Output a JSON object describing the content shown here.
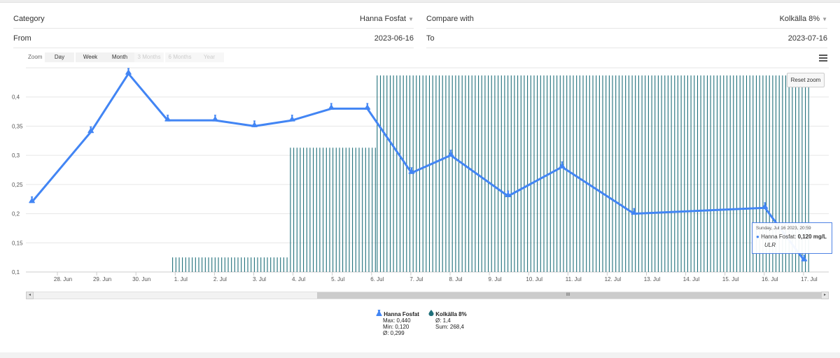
{
  "form": {
    "category_label": "Category",
    "category_value": "Hanna Fosfat",
    "compare_label": "Compare with",
    "compare_value": "Kolkälla 8%",
    "from_label": "From",
    "from_value": "2023-06-16",
    "to_label": "To",
    "to_value": "2023-07-16",
    "dropdown_caret": "▼"
  },
  "zoom": {
    "label": "Zoom",
    "buttons": [
      {
        "label": "Day",
        "enabled": true
      },
      {
        "label": "Week",
        "enabled": true
      },
      {
        "label": "Month",
        "enabled": true
      },
      {
        "label": "3 Months",
        "enabled": false
      },
      {
        "label": "6 Months",
        "enabled": false
      },
      {
        "label": "Year",
        "enabled": false
      }
    ]
  },
  "reset_zoom_label": "Reset zoom",
  "tooltip": {
    "date": "Sunday, Jul 16 2023, 20:59",
    "bullet": "●",
    "series": "Hanna Fosfat:",
    "value": "0,120 mg/L",
    "note": "ULR"
  },
  "legend": {
    "hanna": {
      "name": "Hanna Fosfat",
      "max": "Max: 0,440",
      "min": "Min: 0,120",
      "avg": "Ø: 0,299"
    },
    "kolk": {
      "name": "Kolkälla 8%",
      "avg": "Ø: 1,4",
      "sum": "Sum: 268,4"
    }
  },
  "scrollbar": {
    "left": "◂",
    "right": "▸",
    "grip": "III"
  },
  "colors": {
    "line": "#4285f4",
    "bars": "#1f6f7a",
    "grid": "#e6e6e6",
    "axis_text": "#555555"
  },
  "chart_data": {
    "type": "line",
    "title": "",
    "ylim": [
      0.1,
      0.45
    ],
    "yticks": [
      0.1,
      0.15,
      0.2,
      0.25,
      0.3,
      0.35,
      0.4
    ],
    "ytick_labels": [
      "0,1",
      "0,15",
      "0,2",
      "0,25",
      "0,3",
      "0,35",
      "0,4"
    ],
    "xlim": [
      "2023-06-27",
      "2023-07-17"
    ],
    "xticks": [
      "2023-06-28",
      "2023-06-29",
      "2023-06-30",
      "2023-07-01",
      "2023-07-02",
      "2023-07-03",
      "2023-07-04",
      "2023-07-05",
      "2023-07-06",
      "2023-07-07",
      "2023-07-08",
      "2023-07-09",
      "2023-07-10",
      "2023-07-11",
      "2023-07-12",
      "2023-07-13",
      "2023-07-14",
      "2023-07-15",
      "2023-07-16",
      "2023-07-17"
    ],
    "xtick_labels": [
      "28. Jun",
      "29. Jun",
      "30. Jun",
      "1. Jul",
      "2. Jul",
      "3. Jul",
      "4. Jul",
      "5. Jul",
      "6. Jul",
      "7. Jul",
      "8. Jul",
      "9. Jul",
      "10. Jul",
      "11. Jul",
      "12. Jul",
      "13. Jul",
      "14. Jul",
      "15. Jul",
      "16. Jul",
      "17. Jul"
    ],
    "grid": true,
    "series": [
      {
        "name": "Hanna Fosfat",
        "type": "line",
        "x": [
          "2023-06-27 05:00",
          "2023-06-28 17:00",
          "2023-06-29 16:00",
          "2023-06-30 16:00",
          "2023-07-01 21:00",
          "2023-07-02 21:00",
          "2023-07-03 20:00",
          "2023-07-04 20:00",
          "2023-07-05 18:00",
          "2023-07-06 21:00",
          "2023-07-07 21:00",
          "2023-07-09 08:00",
          "2023-07-10 17:00",
          "2023-07-12 13:00",
          "2023-07-15 21:00",
          "2023-07-16 20:59"
        ],
        "y": [
          0.22,
          0.34,
          0.44,
          0.36,
          0.36,
          0.35,
          0.36,
          0.38,
          0.38,
          0.27,
          0.3,
          0.23,
          0.28,
          0.2,
          0.21,
          0.12
        ]
      },
      {
        "name": "Kolkälla 8%",
        "type": "column",
        "segments": [
          {
            "from": "2023-06-30 19:00",
            "to": "2023-07-03 18:00",
            "level": "low"
          },
          {
            "from": "2023-07-03 19:00",
            "to": "2023-07-05 23:00",
            "level": "mid"
          },
          {
            "from": "2023-07-06 00:00",
            "to": "2023-07-17 00:00",
            "level": "high"
          }
        ]
      }
    ]
  }
}
